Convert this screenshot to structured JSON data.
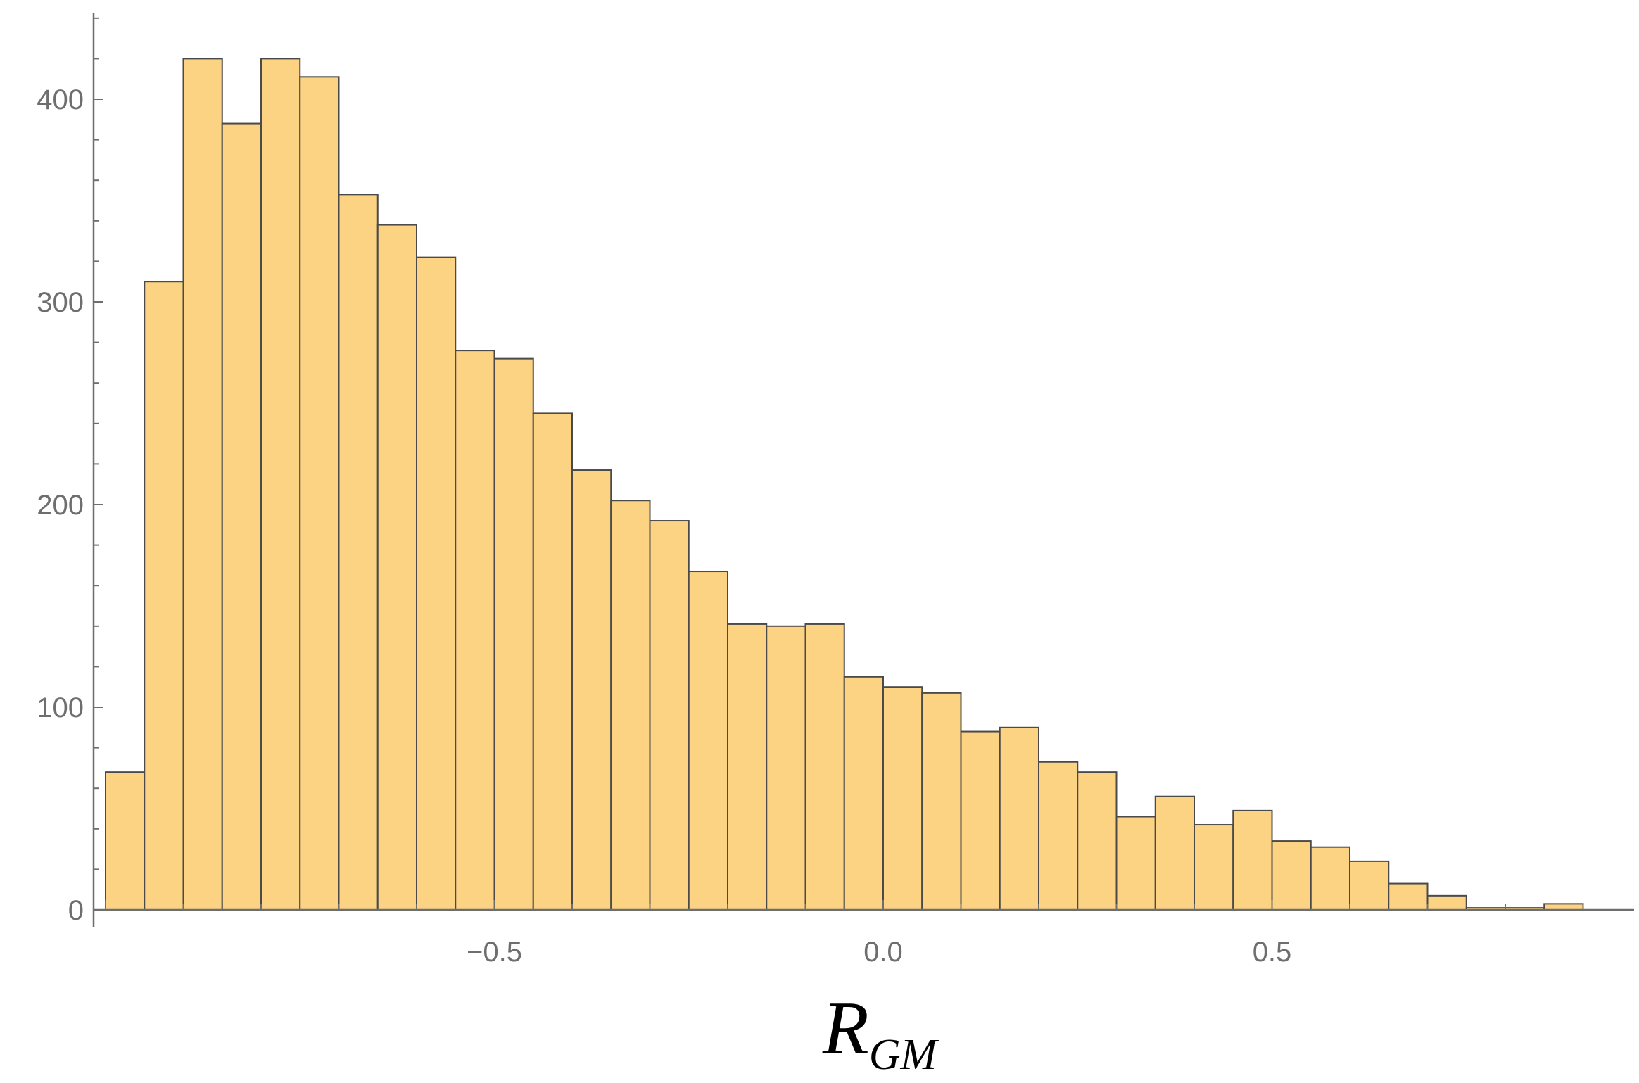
{
  "chart_data": {
    "type": "bar",
    "subtype": "histogram",
    "title": "",
    "xlabel": {
      "main": "R",
      "subscript": "GM"
    },
    "ylabel": "",
    "bin_width": 0.05,
    "bin_start": -1.0,
    "values": [
      68,
      310,
      420,
      388,
      420,
      411,
      353,
      338,
      322,
      276,
      272,
      245,
      217,
      202,
      192,
      167,
      141,
      140,
      141,
      115,
      110,
      107,
      88,
      90,
      73,
      68,
      46,
      56,
      42,
      49,
      34,
      31,
      24,
      13,
      7,
      1,
      1,
      3
    ],
    "xlim": [
      -1.04,
      0.93
    ],
    "ylim": [
      0,
      440
    ],
    "x_ticks": [
      {
        "value": -0.5,
        "label": "−0.5"
      },
      {
        "value": 0.0,
        "label": "0.0"
      },
      {
        "value": 0.5,
        "label": "0.5"
      }
    ],
    "y_ticks": [
      {
        "value": 0,
        "label": "0"
      },
      {
        "value": 100,
        "label": "100"
      },
      {
        "value": 200,
        "label": "200"
      },
      {
        "value": 300,
        "label": "300"
      },
      {
        "value": 400,
        "label": "400"
      }
    ],
    "grid": false,
    "legend": "none",
    "colors": {
      "bar_fill": "#fcd283",
      "bar_stroke": "#4a4a4a",
      "axis": "#6e6e6e",
      "tick_label": "#6e6e6e",
      "axis_title": "#000000"
    }
  }
}
